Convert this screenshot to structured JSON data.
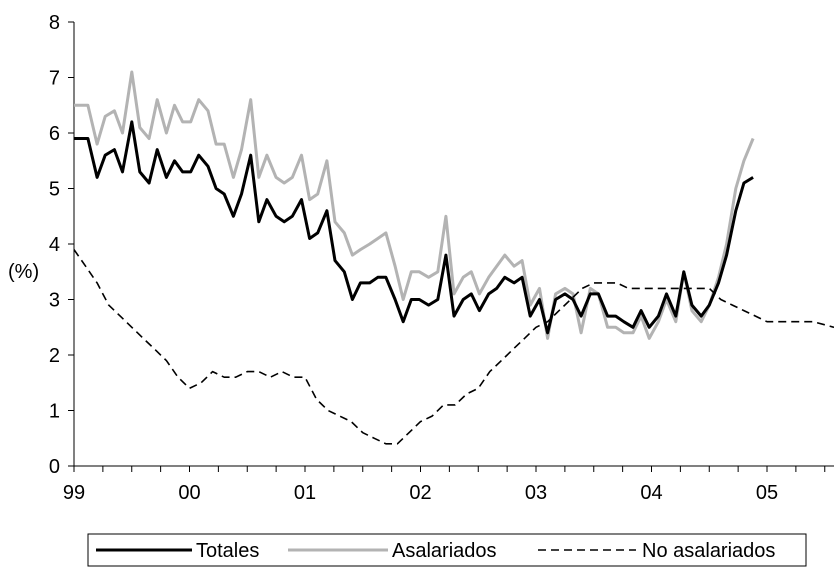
{
  "chart_data": {
    "type": "line",
    "ylabel": "(%)",
    "ylim": [
      0,
      8
    ],
    "yticks": [
      0,
      1,
      2,
      3,
      4,
      5,
      6,
      7,
      8
    ],
    "xlim": [
      1999.0,
      2005.58
    ],
    "xticks": [
      {
        "label": "99",
        "x": 1999
      },
      {
        "label": "00",
        "x": 2000
      },
      {
        "label": "01",
        "x": 2001
      },
      {
        "label": "02",
        "x": 2002
      },
      {
        "label": "03",
        "x": 2003
      },
      {
        "label": "04",
        "x": 2004
      },
      {
        "label": "05",
        "x": 2005
      }
    ],
    "grid": false,
    "legend_position": "bottom",
    "series": [
      {
        "name": "Totales",
        "color": "#000000",
        "style": "solid",
        "points": [
          [
            1999.0,
            5.9
          ],
          [
            1999.05,
            5.9
          ],
          [
            1999.12,
            5.9
          ],
          [
            1999.2,
            5.2
          ],
          [
            1999.27,
            5.6
          ],
          [
            1999.35,
            5.7
          ],
          [
            1999.42,
            5.3
          ],
          [
            1999.5,
            6.2
          ],
          [
            1999.57,
            5.3
          ],
          [
            1999.65,
            5.1
          ],
          [
            1999.72,
            5.7
          ],
          [
            1999.8,
            5.2
          ],
          [
            1999.87,
            5.5
          ],
          [
            1999.94,
            5.3
          ],
          [
            2000.01,
            5.3
          ],
          [
            2000.08,
            5.6
          ],
          [
            2000.16,
            5.4
          ],
          [
            2000.23,
            5.0
          ],
          [
            2000.3,
            4.9
          ],
          [
            2000.38,
            4.5
          ],
          [
            2000.45,
            4.9
          ],
          [
            2000.53,
            5.6
          ],
          [
            2000.6,
            4.4
          ],
          [
            2000.67,
            4.8
          ],
          [
            2000.75,
            4.5
          ],
          [
            2000.82,
            4.4
          ],
          [
            2000.89,
            4.5
          ],
          [
            2000.97,
            4.8
          ],
          [
            2001.04,
            4.1
          ],
          [
            2001.11,
            4.2
          ],
          [
            2001.19,
            4.6
          ],
          [
            2001.26,
            3.7
          ],
          [
            2001.34,
            3.5
          ],
          [
            2001.41,
            3.0
          ],
          [
            2001.48,
            3.3
          ],
          [
            2001.56,
            3.3
          ],
          [
            2001.63,
            3.4
          ],
          [
            2001.7,
            3.4
          ],
          [
            2001.78,
            3.0
          ],
          [
            2001.85,
            2.6
          ],
          [
            2001.92,
            3.0
          ],
          [
            2001.99,
            3.0
          ],
          [
            2002.07,
            2.9
          ],
          [
            2002.15,
            3.0
          ],
          [
            2002.22,
            3.8
          ],
          [
            2002.29,
            2.7
          ],
          [
            2002.37,
            3.0
          ],
          [
            2002.44,
            3.1
          ],
          [
            2002.51,
            2.8
          ],
          [
            2002.59,
            3.1
          ],
          [
            2002.66,
            3.2
          ],
          [
            2002.73,
            3.4
          ],
          [
            2002.81,
            3.3
          ],
          [
            2002.88,
            3.4
          ],
          [
            2002.95,
            2.7
          ],
          [
            2003.03,
            3.0
          ],
          [
            2003.1,
            2.4
          ],
          [
            2003.17,
            3.0
          ],
          [
            2003.25,
            3.1
          ],
          [
            2003.32,
            3.0
          ],
          [
            2003.39,
            2.7
          ],
          [
            2003.47,
            3.1
          ],
          [
            2003.54,
            3.1
          ],
          [
            2003.62,
            2.7
          ],
          [
            2003.69,
            2.7
          ],
          [
            2003.76,
            2.6
          ],
          [
            2003.84,
            2.5
          ],
          [
            2003.91,
            2.8
          ],
          [
            2003.98,
            2.5
          ],
          [
            2004.06,
            2.7
          ],
          [
            2004.13,
            3.1
          ],
          [
            2004.21,
            2.7
          ],
          [
            2004.28,
            3.5
          ],
          [
            2004.35,
            2.9
          ],
          [
            2004.43,
            2.7
          ],
          [
            2004.5,
            2.9
          ],
          [
            2004.58,
            3.3
          ],
          [
            2004.65,
            3.8
          ],
          [
            2004.73,
            4.6
          ],
          [
            2004.8,
            5.1
          ],
          [
            2004.88,
            5.2
          ]
        ]
      },
      {
        "name": "Asalariados",
        "color": "#b3b3b3",
        "style": "solid",
        "points": [
          [
            1999.0,
            6.5
          ],
          [
            1999.05,
            6.5
          ],
          [
            1999.12,
            6.5
          ],
          [
            1999.2,
            5.8
          ],
          [
            1999.27,
            6.3
          ],
          [
            1999.35,
            6.4
          ],
          [
            1999.42,
            6.0
          ],
          [
            1999.5,
            7.1
          ],
          [
            1999.57,
            6.1
          ],
          [
            1999.65,
            5.9
          ],
          [
            1999.72,
            6.6
          ],
          [
            1999.8,
            6.0
          ],
          [
            1999.87,
            6.5
          ],
          [
            1999.94,
            6.2
          ],
          [
            2000.01,
            6.2
          ],
          [
            2000.08,
            6.6
          ],
          [
            2000.16,
            6.4
          ],
          [
            2000.23,
            5.8
          ],
          [
            2000.3,
            5.8
          ],
          [
            2000.38,
            5.2
          ],
          [
            2000.45,
            5.7
          ],
          [
            2000.53,
            6.6
          ],
          [
            2000.6,
            5.2
          ],
          [
            2000.67,
            5.6
          ],
          [
            2000.75,
            5.2
          ],
          [
            2000.82,
            5.1
          ],
          [
            2000.89,
            5.2
          ],
          [
            2000.97,
            5.6
          ],
          [
            2001.04,
            4.8
          ],
          [
            2001.11,
            4.9
          ],
          [
            2001.19,
            5.5
          ],
          [
            2001.26,
            4.4
          ],
          [
            2001.34,
            4.2
          ],
          [
            2001.41,
            3.8
          ],
          [
            2001.48,
            3.9
          ],
          [
            2001.56,
            4.0
          ],
          [
            2001.63,
            4.1
          ],
          [
            2001.7,
            4.2
          ],
          [
            2001.78,
            3.6
          ],
          [
            2001.85,
            3.0
          ],
          [
            2001.92,
            3.5
          ],
          [
            2001.99,
            3.5
          ],
          [
            2002.07,
            3.4
          ],
          [
            2002.15,
            3.5
          ],
          [
            2002.22,
            4.5
          ],
          [
            2002.29,
            3.1
          ],
          [
            2002.37,
            3.4
          ],
          [
            2002.44,
            3.5
          ],
          [
            2002.51,
            3.1
          ],
          [
            2002.59,
            3.4
          ],
          [
            2002.66,
            3.6
          ],
          [
            2002.73,
            3.8
          ],
          [
            2002.81,
            3.6
          ],
          [
            2002.88,
            3.7
          ],
          [
            2002.95,
            2.9
          ],
          [
            2003.03,
            3.2
          ],
          [
            2003.1,
            2.3
          ],
          [
            2003.17,
            3.1
          ],
          [
            2003.25,
            3.2
          ],
          [
            2003.32,
            3.1
          ],
          [
            2003.39,
            2.4
          ],
          [
            2003.47,
            3.2
          ],
          [
            2003.54,
            3.1
          ],
          [
            2003.62,
            2.5
          ],
          [
            2003.69,
            2.5
          ],
          [
            2003.76,
            2.4
          ],
          [
            2003.84,
            2.4
          ],
          [
            2003.91,
            2.7
          ],
          [
            2003.98,
            2.3
          ],
          [
            2004.06,
            2.6
          ],
          [
            2004.13,
            3.0
          ],
          [
            2004.21,
            2.6
          ],
          [
            2004.28,
            3.5
          ],
          [
            2004.35,
            2.8
          ],
          [
            2004.43,
            2.6
          ],
          [
            2004.5,
            2.9
          ],
          [
            2004.58,
            3.4
          ],
          [
            2004.65,
            4.0
          ],
          [
            2004.73,
            5.0
          ],
          [
            2004.8,
            5.5
          ],
          [
            2004.88,
            5.9
          ]
        ]
      },
      {
        "name": "No asalariados",
        "color": "#000000",
        "style": "dashed",
        "points": [
          [
            1999.0,
            3.9
          ],
          [
            1999.1,
            3.6
          ],
          [
            1999.2,
            3.3
          ],
          [
            1999.3,
            2.9
          ],
          [
            1999.4,
            2.7
          ],
          [
            1999.5,
            2.5
          ],
          [
            1999.6,
            2.3
          ],
          [
            1999.7,
            2.1
          ],
          [
            1999.8,
            1.9
          ],
          [
            1999.9,
            1.6
          ],
          [
            2000.0,
            1.4
          ],
          [
            2000.1,
            1.5
          ],
          [
            2000.2,
            1.7
          ],
          [
            2000.3,
            1.6
          ],
          [
            2000.4,
            1.6
          ],
          [
            2000.5,
            1.7
          ],
          [
            2000.6,
            1.7
          ],
          [
            2000.7,
            1.6
          ],
          [
            2000.8,
            1.7
          ],
          [
            2000.9,
            1.6
          ],
          [
            2001.0,
            1.6
          ],
          [
            2001.1,
            1.2
          ],
          [
            2001.2,
            1.0
          ],
          [
            2001.3,
            0.9
          ],
          [
            2001.4,
            0.8
          ],
          [
            2001.5,
            0.6
          ],
          [
            2001.6,
            0.5
          ],
          [
            2001.7,
            0.4
          ],
          [
            2001.8,
            0.4
          ],
          [
            2001.9,
            0.6
          ],
          [
            2002.0,
            0.8
          ],
          [
            2002.1,
            0.9
          ],
          [
            2002.2,
            1.1
          ],
          [
            2002.3,
            1.1
          ],
          [
            2002.4,
            1.3
          ],
          [
            2002.5,
            1.4
          ],
          [
            2002.6,
            1.7
          ],
          [
            2002.7,
            1.9
          ],
          [
            2002.8,
            2.1
          ],
          [
            2002.9,
            2.3
          ],
          [
            2003.0,
            2.5
          ],
          [
            2003.1,
            2.6
          ],
          [
            2003.2,
            2.8
          ],
          [
            2003.3,
            3.0
          ],
          [
            2003.4,
            3.2
          ],
          [
            2003.5,
            3.3
          ],
          [
            2003.6,
            3.3
          ],
          [
            2003.7,
            3.3
          ],
          [
            2003.8,
            3.2
          ],
          [
            2003.9,
            3.2
          ],
          [
            2004.0,
            3.2
          ],
          [
            2004.1,
            3.2
          ],
          [
            2004.2,
            3.2
          ],
          [
            2004.3,
            3.2
          ],
          [
            2004.4,
            3.2
          ],
          [
            2004.5,
            3.2
          ],
          [
            2004.6,
            3.0
          ],
          [
            2004.7,
            2.9
          ],
          [
            2004.8,
            2.8
          ],
          [
            2004.9,
            2.7
          ],
          [
            2005.0,
            2.6
          ],
          [
            2005.1,
            2.6
          ],
          [
            2005.2,
            2.6
          ],
          [
            2005.3,
            2.6
          ],
          [
            2005.4,
            2.6
          ],
          [
            2005.58,
            2.5
          ]
        ]
      }
    ]
  }
}
